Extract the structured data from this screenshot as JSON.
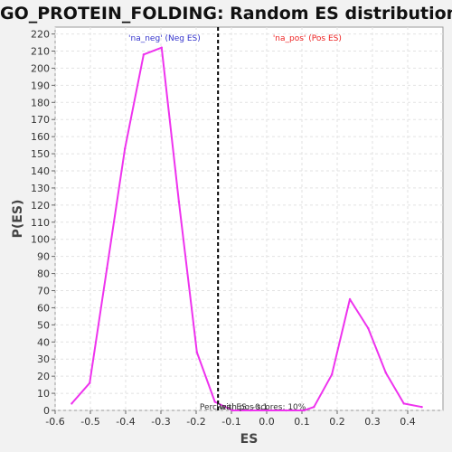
{
  "chart_data": {
    "type": "line",
    "title": "GO_PROTEIN_FOLDING: Random ES distribution",
    "xlabel": "ES",
    "ylabel": "P(ES)",
    "xlim": [
      -0.6,
      0.5
    ],
    "ylim": [
      0,
      224
    ],
    "xticks": [
      -0.6,
      -0.5,
      -0.4,
      -0.3,
      -0.2,
      -0.1,
      0.0,
      0.1,
      0.2,
      0.3,
      0.4
    ],
    "xtick_labels": [
      "-0.6",
      "-0.5",
      "-0.4",
      "-0.3",
      "-0.2",
      "-0.1",
      "0.0",
      "0.1",
      "0.2",
      "0.3",
      "0.4"
    ],
    "yticks": [
      0,
      10,
      20,
      30,
      40,
      50,
      60,
      70,
      80,
      90,
      100,
      110,
      120,
      130,
      140,
      150,
      160,
      170,
      180,
      190,
      200,
      210,
      220
    ],
    "grid": true,
    "series": [
      {
        "color": "#ee33ee",
        "x": [
          -0.553,
          -0.502,
          -0.453,
          -0.402,
          -0.349,
          -0.298,
          -0.249,
          -0.198,
          -0.147,
          -0.097,
          -0.046,
          0.005,
          0.055,
          0.106,
          0.134,
          0.185,
          0.236,
          0.288,
          0.338,
          0.389,
          0.44
        ],
        "y": [
          4,
          16,
          83,
          153,
          208,
          212,
          122,
          34,
          5,
          0,
          0,
          0,
          0,
          0,
          2,
          21,
          65,
          48,
          22,
          4,
          2
        ]
      }
    ],
    "vline": {
      "x": -0.138,
      "style": "dashed",
      "color": "#000000"
    },
    "legend": {
      "placement": "top",
      "entries": [
        {
          "text": "'na_neg' (Neg ES)",
          "color": "#3333cc"
        },
        {
          "text": "'na_pos' (Pos ES)",
          "color": "#ee2222"
        }
      ]
    },
    "annotations": [
      "Real ES: -0.1",
      "Perc with pos scores: 10%"
    ]
  }
}
